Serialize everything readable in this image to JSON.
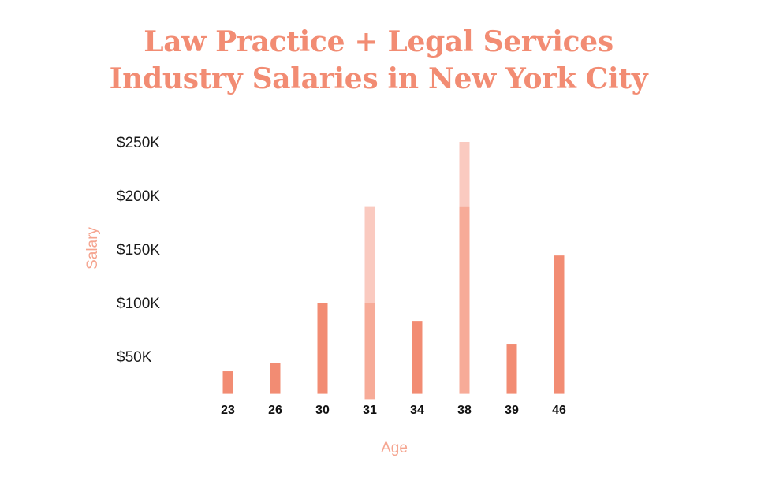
{
  "title": {
    "line1": "Law Practice + Legal Services",
    "line2": "Industry Salaries in New York City"
  },
  "colors": {
    "title": "#f28c73",
    "bar": "#f28c73",
    "bar_mid": "#f7ab98",
    "bar_light": "#facac0",
    "axis_label": "#f5a48f"
  },
  "chart_data": {
    "type": "bar",
    "title": "Law Practice + Legal Services Industry Salaries in New York City",
    "xlabel": "Age",
    "ylabel": "Salary",
    "y_ticks": [
      {
        "value": 250000,
        "label": "$250K"
      },
      {
        "value": 200000,
        "label": "$200K"
      },
      {
        "value": 150000,
        "label": "$150K"
      },
      {
        "value": 100000,
        "label": "$100K"
      },
      {
        "value": 50000,
        "label": "$50K"
      }
    ],
    "ylim": [
      10000,
      250000
    ],
    "grid": false,
    "categories": [
      "23",
      "26",
      "30",
      "31",
      "34",
      "38",
      "39",
      "46"
    ],
    "bars": [
      {
        "age": "23",
        "low": 15000,
        "high": 36000
      },
      {
        "age": "26",
        "low": 15000,
        "high": 44000
      },
      {
        "age": "30",
        "low": 15000,
        "high": 100000
      },
      {
        "age": "31",
        "low": 10000,
        "mid": 100000,
        "high": 190000
      },
      {
        "age": "34",
        "low": 15000,
        "high": 83000
      },
      {
        "age": "38",
        "low": 15000,
        "mid": 190000,
        "high": 250000
      },
      {
        "age": "39",
        "low": 15000,
        "high": 61000
      },
      {
        "age": "46",
        "low": 15000,
        "high": 144000
      }
    ]
  }
}
